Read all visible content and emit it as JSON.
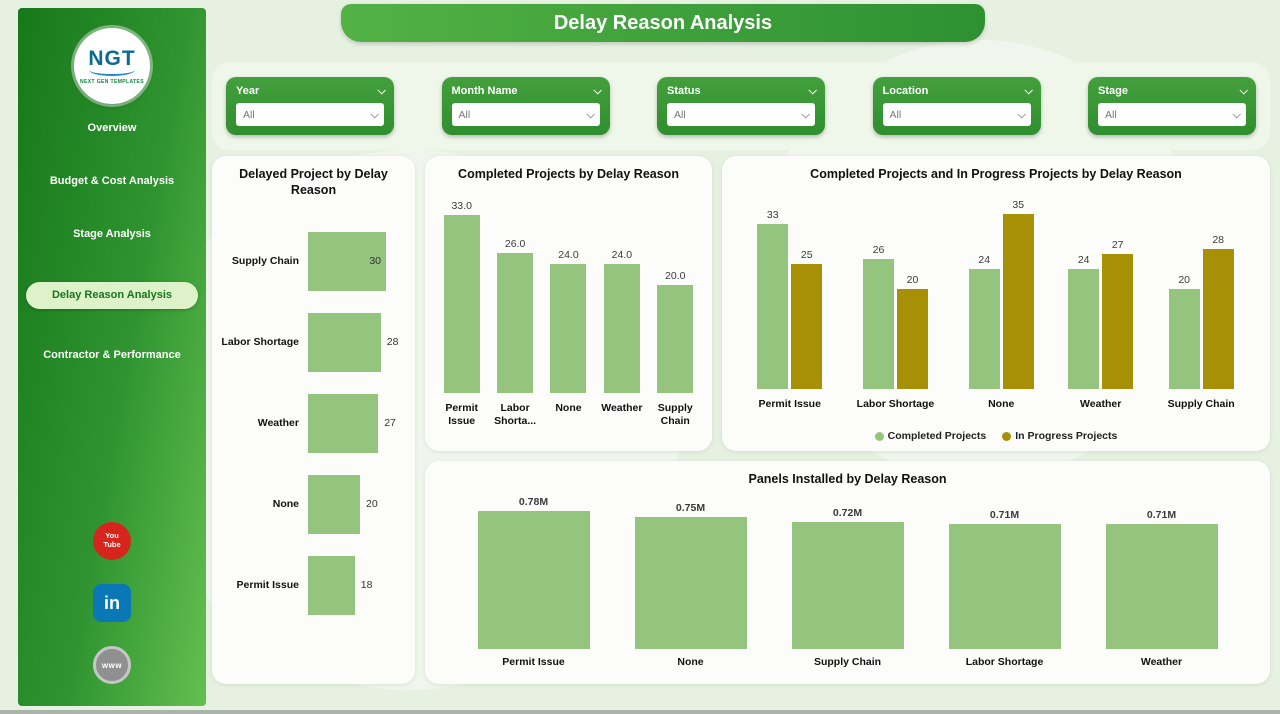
{
  "title": "Delay Reason Analysis",
  "theme": {
    "bar_green": "#94c47e",
    "bar_olive": "#a78f06"
  },
  "sidebar": {
    "logo": {
      "text": "NGT",
      "subtext": "NEXT GEN TEMPLATES"
    },
    "items": [
      {
        "label": "Overview",
        "active": false
      },
      {
        "label": "Budget & Cost Analysis",
        "active": false
      },
      {
        "label": "Stage Analysis",
        "active": false
      },
      {
        "label": "Delay Reason Analysis",
        "active": true
      },
      {
        "label": "Contractor & Performance",
        "active": false
      }
    ],
    "social": [
      {
        "name": "youtube",
        "label": "You Tube"
      },
      {
        "name": "linkedin",
        "label": "in"
      },
      {
        "name": "website",
        "label": "www"
      }
    ]
  },
  "filters": [
    {
      "label": "Year",
      "value": "All"
    },
    {
      "label": "Month Name",
      "value": "All"
    },
    {
      "label": "Status",
      "value": "All"
    },
    {
      "label": "Location",
      "value": "All"
    },
    {
      "label": "Stage",
      "value": "All"
    }
  ],
  "chart_data": [
    {
      "type": "bar",
      "orientation": "horizontal",
      "title": "Delayed Project by Delay Reason",
      "categories": [
        "Supply Chain",
        "Labor Shortage",
        "Weather",
        "None",
        "Permit Issue"
      ],
      "values": [
        30,
        28,
        27,
        20,
        18
      ],
      "xlim": [
        0,
        30
      ],
      "grid": false
    },
    {
      "type": "bar",
      "orientation": "vertical",
      "title": "Completed Projects by Delay Reason",
      "categories": [
        "Permit Issue",
        "Labor Shorta...",
        "None",
        "Weather",
        "Supply Chain"
      ],
      "values": [
        33,
        26,
        24,
        24,
        20
      ],
      "data_labels": [
        "33.0",
        "26.0",
        "24.0",
        "24.0",
        "20.0"
      ],
      "ylim": [
        0,
        33
      ],
      "grid": false
    },
    {
      "type": "bar",
      "orientation": "vertical",
      "grouped": true,
      "title": "Completed Projects and In Progress Projects by Delay Reason",
      "categories": [
        "Permit Issue",
        "Labor Shortage",
        "None",
        "Weather",
        "Supply Chain"
      ],
      "series": [
        {
          "name": "Completed Projects",
          "color": "#94c47e",
          "values": [
            33,
            26,
            24,
            24,
            20
          ]
        },
        {
          "name": "In Progress Projects",
          "color": "#a78f06",
          "values": [
            25,
            20,
            35,
            27,
            28
          ]
        }
      ],
      "legend_position": "bottom",
      "ylim": [
        0,
        35
      ],
      "grid": false
    },
    {
      "type": "bar",
      "orientation": "vertical",
      "title": "Panels Installed by Delay Reason",
      "categories": [
        "Permit Issue",
        "None",
        "Supply Chain",
        "Labor Shortage",
        "Weather"
      ],
      "values": [
        780000,
        750000,
        720000,
        710000,
        710000
      ],
      "data_labels": [
        "0.78M",
        "0.75M",
        "0.72M",
        "0.71M",
        "0.71M"
      ],
      "ylim": [
        0,
        780000
      ],
      "grid": false
    }
  ]
}
